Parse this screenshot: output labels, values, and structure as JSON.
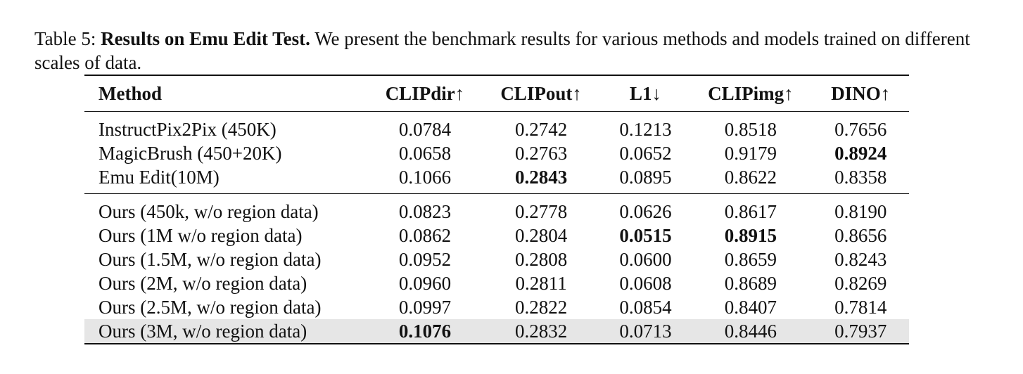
{
  "caption": {
    "label": "Table 5:",
    "title": "Results on Emu Edit Test.",
    "text": "We present the benchmark results for various methods and models trained on different scales of data."
  },
  "table": {
    "headers": [
      "Method",
      "CLIPdir↑",
      "CLIPout↑",
      "L1↓",
      "CLIPimg↑",
      "DINO↑"
    ],
    "group1": [
      {
        "method": "InstructPix2Pix (450K)",
        "values": [
          "0.0784",
          "0.2742",
          "0.1213",
          "0.8518",
          "0.7656"
        ]
      },
      {
        "method": "MagicBrush (450+20K)",
        "values": [
          "0.0658",
          "0.2763",
          "0.0652",
          "0.9179",
          "0.8924"
        ]
      },
      {
        "method": "Emu Edit(10M)",
        "values": [
          "0.1066",
          "0.2843",
          "0.0895",
          "0.8622",
          "0.8358"
        ]
      }
    ],
    "group2": [
      {
        "method": "Ours (450k, w/o region data)",
        "values": [
          "0.0823",
          "0.2778",
          "0.0626",
          "0.8617",
          "0.8190"
        ]
      },
      {
        "method": "Ours (1M w/o region data)",
        "values": [
          "0.0862",
          "0.2804",
          "0.0515",
          "0.8915",
          "0.8656"
        ]
      },
      {
        "method": "Ours (1.5M, w/o region data)",
        "values": [
          "0.0952",
          "0.2808",
          "0.0600",
          "0.8659",
          "0.8243"
        ]
      },
      {
        "method": "Ours (2M, w/o region data)",
        "values": [
          "0.0960",
          "0.2811",
          "0.0608",
          "0.8689",
          "0.8269"
        ]
      },
      {
        "method": "Ours (2.5M, w/o region data)",
        "values": [
          "0.0997",
          "0.2822",
          "0.0854",
          "0.8407",
          "0.7814"
        ]
      },
      {
        "method": "Ours (3M, w/o region data)",
        "values": [
          "0.1076",
          "0.2832",
          "0.0713",
          "0.8446",
          "0.7937"
        ],
        "highlighted": true
      }
    ]
  }
}
